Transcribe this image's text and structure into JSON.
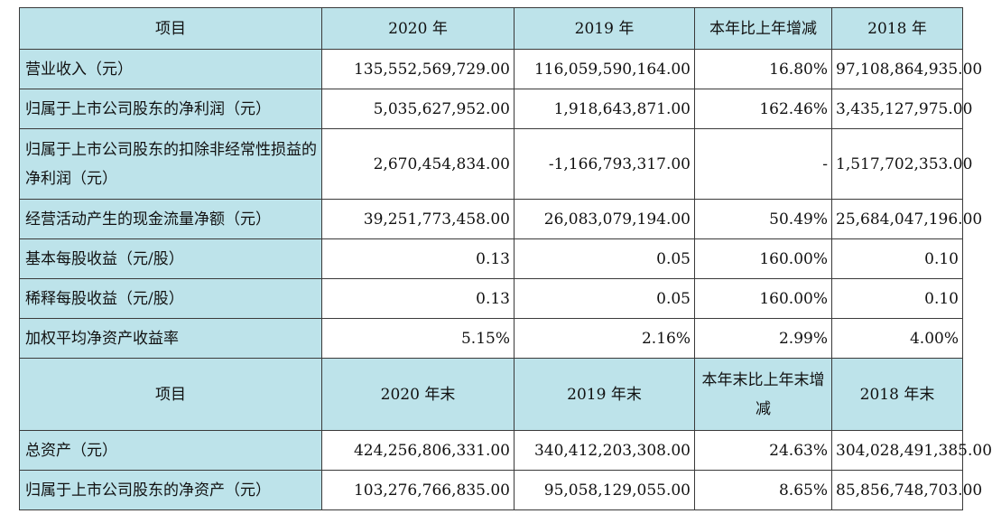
{
  "header1": [
    "项目",
    "2020 年",
    "2019 年",
    "本年比上年增减",
    "2018 年"
  ],
  "rows1": [
    {
      "label": "营业收入（元）",
      "v2020": "135,552,569,729.00",
      "v2019": "116,059,590,164.00",
      "change": "16.80%",
      "v2018": "97,108,864,935.00"
    },
    {
      "label": "归属于上市公司股东的净利润（元）",
      "v2020": "5,035,627,952.00",
      "v2019": "1,918,643,871.00",
      "change": "162.46%",
      "v2018": "3,435,127,975.00"
    },
    {
      "label": "归属于上市公司股东的扣除非经常性损益的净利润（元）",
      "v2020": "2,670,454,834.00",
      "v2019": "-1,166,793,317.00",
      "change": "-",
      "v2018": "1,517,702,353.00"
    },
    {
      "label": "经营活动产生的现金流量净额（元）",
      "v2020": "39,251,773,458.00",
      "v2019": "26,083,079,194.00",
      "change": "50.49%",
      "v2018": "25,684,047,196.00"
    },
    {
      "label": "基本每股收益（元/股）",
      "v2020": "0.13",
      "v2019": "0.05",
      "change": "160.00%",
      "v2018": "0.10"
    },
    {
      "label": "稀释每股收益（元/股）",
      "v2020": "0.13",
      "v2019": "0.05",
      "change": "160.00%",
      "v2018": "0.10"
    },
    {
      "label": "加权平均净资产收益率",
      "v2020": "5.15%",
      "v2019": "2.16%",
      "change": "2.99%",
      "v2018": "4.00%"
    }
  ],
  "header2": [
    "项目",
    "2020 年末",
    "2019 年末",
    "本年末比上年末增减",
    "2018 年末"
  ],
  "rows2": [
    {
      "label": "总资产（元）",
      "v2020": "424,256,806,331.00",
      "v2019": "340,412,203,308.00",
      "change": "24.63%",
      "v2018": "304,028,491,385.00"
    },
    {
      "label": "归属于上市公司股东的净资产（元）",
      "v2020": "103,276,766,835.00",
      "v2019": "95,058,129,055.00",
      "change": "8.65%",
      "v2018": "85,856,748,703.00"
    }
  ]
}
